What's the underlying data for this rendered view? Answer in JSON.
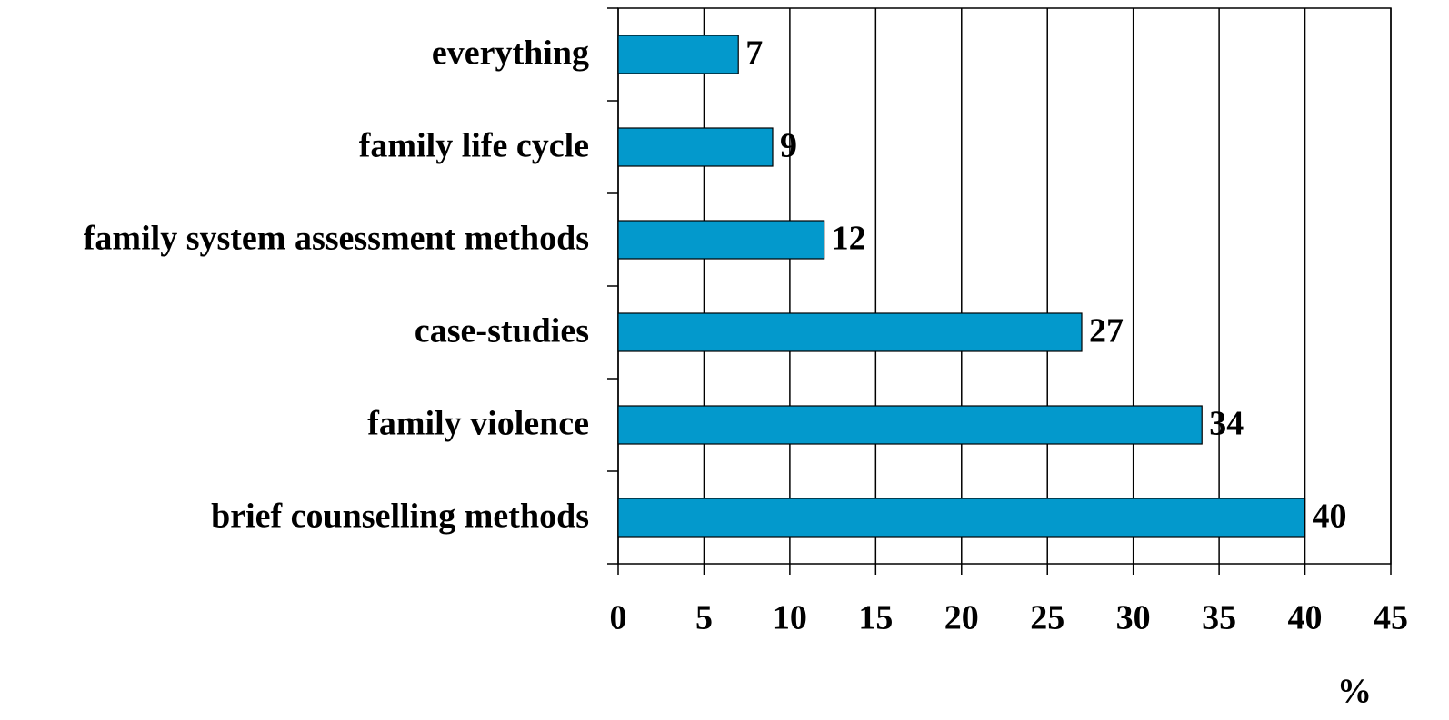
{
  "chart_data": {
    "type": "bar",
    "orientation": "horizontal",
    "categories": [
      "everything",
      "family life cycle",
      "family system assessment methods",
      "case-studies",
      "family violence",
      "brief counselling methods"
    ],
    "values": [
      7,
      9,
      12,
      27,
      34,
      40
    ],
    "color": "#0399cc",
    "xlim": [
      0,
      45
    ],
    "xticks": [
      0,
      5,
      10,
      15,
      20,
      25,
      30,
      35,
      40,
      45
    ],
    "x_label": "%",
    "grid": true
  }
}
